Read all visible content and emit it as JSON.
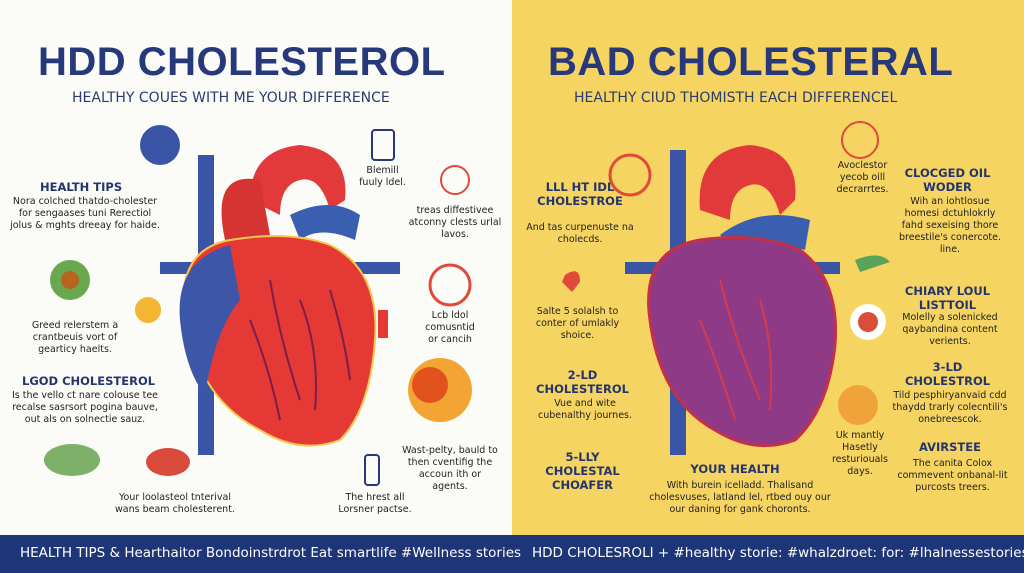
{
  "left": {
    "title": "HDD CHOLESTEROL",
    "subtitle": "HEALTHY COUES WITH ME YOUR DIFFERENCE",
    "blocks": [
      {
        "heading": "HEALTH TIPS",
        "text": "Nora colched thatdo-cholester for sengaases tuni Rerectiol jolus & mghts dreeay for haide."
      },
      {
        "text": "Greed relerstem a crantbeuis vort of gearticy haelts."
      },
      {
        "heading": "LGOD CHOLESTEROL",
        "text": "Is the vello ct nare colouse tee recalse sasrsort pogina bauve, out als on solnectie sauz."
      },
      {
        "text": "Your loolasteol tnterival wans beam cholesterent."
      },
      {
        "text": "Blemill fuuly ldel."
      },
      {
        "text": "treas diffestivee atconny clests urlal lavos."
      },
      {
        "text": "Lcb ldol comusntid or cancih"
      },
      {
        "text": "Wast-pelty, bauld to then cventifig the accoun ith or agents."
      },
      {
        "text": "The hrest all Lorsner pactse."
      }
    ]
  },
  "right": {
    "title": "BAD CHOLESTERAL",
    "subtitle": "HEALTHY CIUD THOMISTH EACH DIFFERENCEL",
    "blocks": [
      {
        "heading": "LLL HT IDL CHOLESTROE",
        "text": "And tas curpenuste na cholecds."
      },
      {
        "text": "Salte 5 solalsh to conter of umlakly shoice."
      },
      {
        "heading": "2-LD CHOLESTEROL",
        "text": "Vue and wite cubenalthy journes."
      },
      {
        "heading": "5-LLY CHOLESTAL CHOAFER"
      },
      {
        "heading": "YOUR HEALTH",
        "text": "With burein icelladd. Thalisand cholesvuses, latland lel, rtbed ouy our our daning for gank choronts."
      },
      {
        "text": "Avoclestor yecob oill decrarrtes."
      },
      {
        "heading": "CLOCGED OIL WODER",
        "text": "Wih an iohtlosue homesi dctuhlokrly fahd sexeising thore breestile's conercote. line."
      },
      {
        "heading": "CHIARY LOUL LISTTOIL",
        "text": "Molelly a solenicked qaybandina content verients."
      },
      {
        "heading": "3-LD CHOLESTROL",
        "text": "Tild pesphiryanvaid cdd thaydd trarly colecntili's onebreescok."
      },
      {
        "text": "Uk mantly Hasetly resturiouals days."
      },
      {
        "heading": "AVIRSTEE",
        "text": "The canita Colox commevent onbanal-lit purcosts treers."
      }
    ]
  },
  "footer": {
    "left": "HEALTH TIPS & Hearthaitor Bondoinstrdrot Eat smartlife #Wellness stories",
    "right": "HDD CHOLESROLI + #healthy storie: #whalzdroet: for: #lhalnessestories"
  }
}
